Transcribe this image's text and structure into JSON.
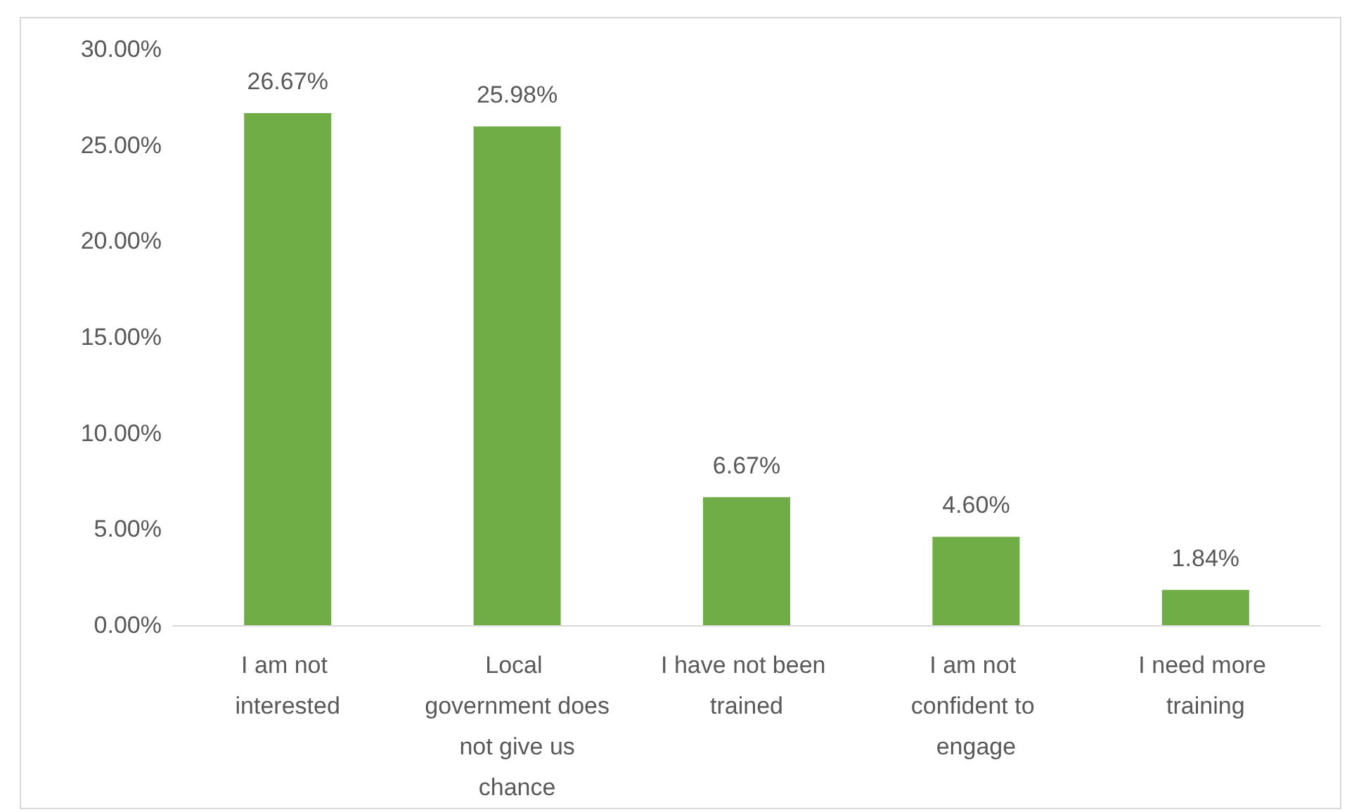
{
  "chart_data": {
    "type": "bar",
    "categories": [
      "I am not interested",
      "Local government does not give us chance",
      "I have not been trained",
      "I am not confident to engage",
      "I need more training"
    ],
    "values": [
      26.67,
      25.98,
      6.67,
      4.6,
      1.84
    ],
    "value_labels": [
      "26.67%",
      "25.98%",
      "6.67%",
      "4.60%",
      "1.84%"
    ],
    "color": "#70ad47",
    "ylim": [
      0,
      30
    ],
    "yticks": [
      {
        "value": 0,
        "label": "0.00%"
      },
      {
        "value": 5,
        "label": "5.00%"
      },
      {
        "value": 10,
        "label": "10.00%"
      },
      {
        "value": 15,
        "label": "15.00%"
      },
      {
        "value": 20,
        "label": "20.00%"
      },
      {
        "value": 25,
        "label": "25.00%"
      },
      {
        "value": 30,
        "label": "30.00%"
      }
    ],
    "grid": false
  }
}
